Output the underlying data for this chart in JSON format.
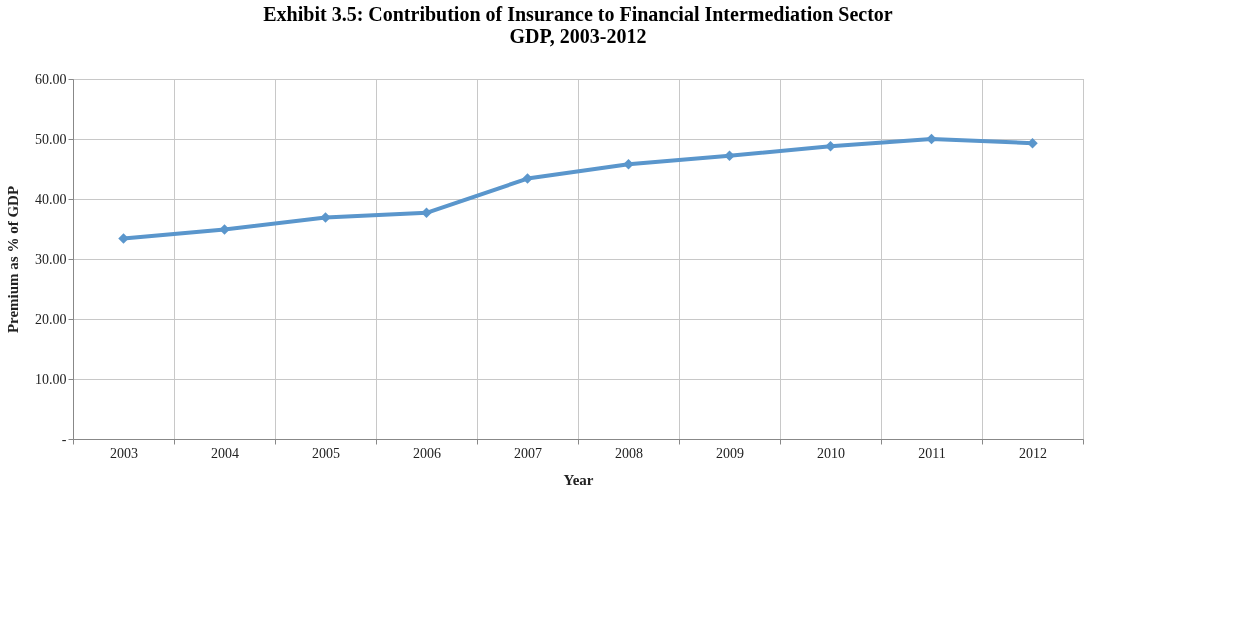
{
  "chart_data": {
    "type": "line",
    "title": [
      "Exhibit 3.5: Contribution of Insurance to Financial Intermediation Sector",
      "GDP,  2003-2012"
    ],
    "xlabel": "Year",
    "ylabel": "Premium as % of GDP",
    "categories": [
      "2003",
      "2004",
      "2005",
      "2006",
      "2007",
      "2008",
      "2009",
      "2010",
      "2011",
      "2012"
    ],
    "series": [
      {
        "color": "#5a96cc",
        "values": [
          33.4,
          34.9,
          36.9,
          37.7,
          43.4,
          45.8,
          47.2,
          48.8,
          50.0,
          49.3
        ]
      }
    ],
    "ylim": [
      0,
      60
    ],
    "yticks": [
      {
        "value": 0,
        "label": "-"
      },
      {
        "value": 10,
        "label": "10.00"
      },
      {
        "value": 20,
        "label": "20.00"
      },
      {
        "value": 30,
        "label": "30.00"
      },
      {
        "value": 40,
        "label": "40.00"
      },
      {
        "value": 50,
        "label": "50.00"
      },
      {
        "value": 60,
        "label": "60.00"
      }
    ],
    "grid": true,
    "marker": "diamond",
    "line_style": "solid"
  }
}
